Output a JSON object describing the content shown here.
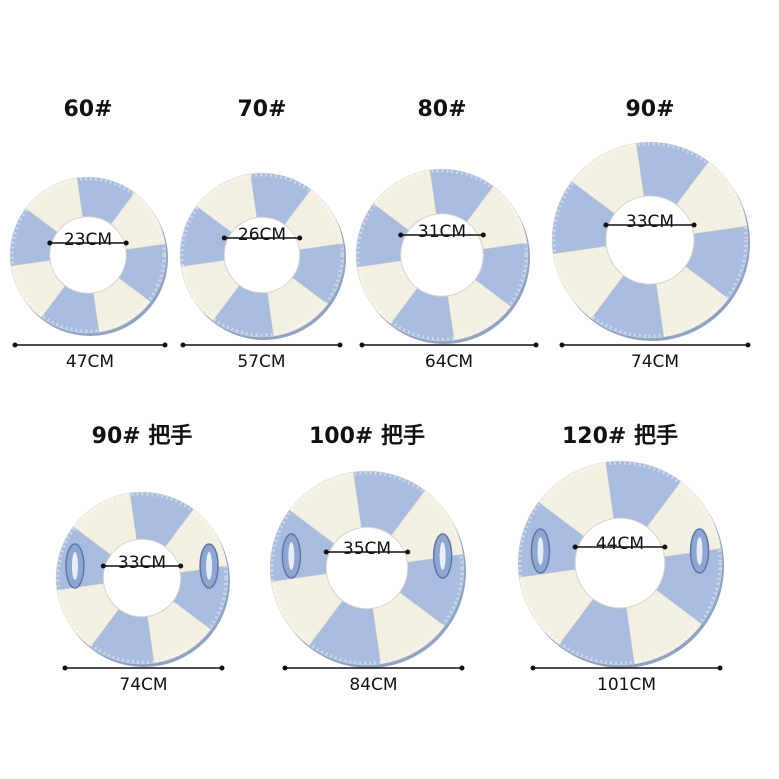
{
  "rings": [
    {
      "label": "60#",
      "inner": "23CM",
      "outer": "47CM"
    },
    {
      "label": "70#",
      "inner": "26CM",
      "outer": "57CM"
    },
    {
      "label": "80#",
      "inner": "31CM",
      "outer": "64CM"
    },
    {
      "label": "90#",
      "inner": "33CM",
      "outer": "74CM"
    },
    {
      "label": "90# 把手",
      "inner": "33CM",
      "outer": "74CM"
    },
    {
      "label": "100# 把手",
      "inner": "35CM",
      "outer": "84CM"
    },
    {
      "label": "120# 把手",
      "inner": "44CM",
      "outer": "101CM"
    }
  ]
}
